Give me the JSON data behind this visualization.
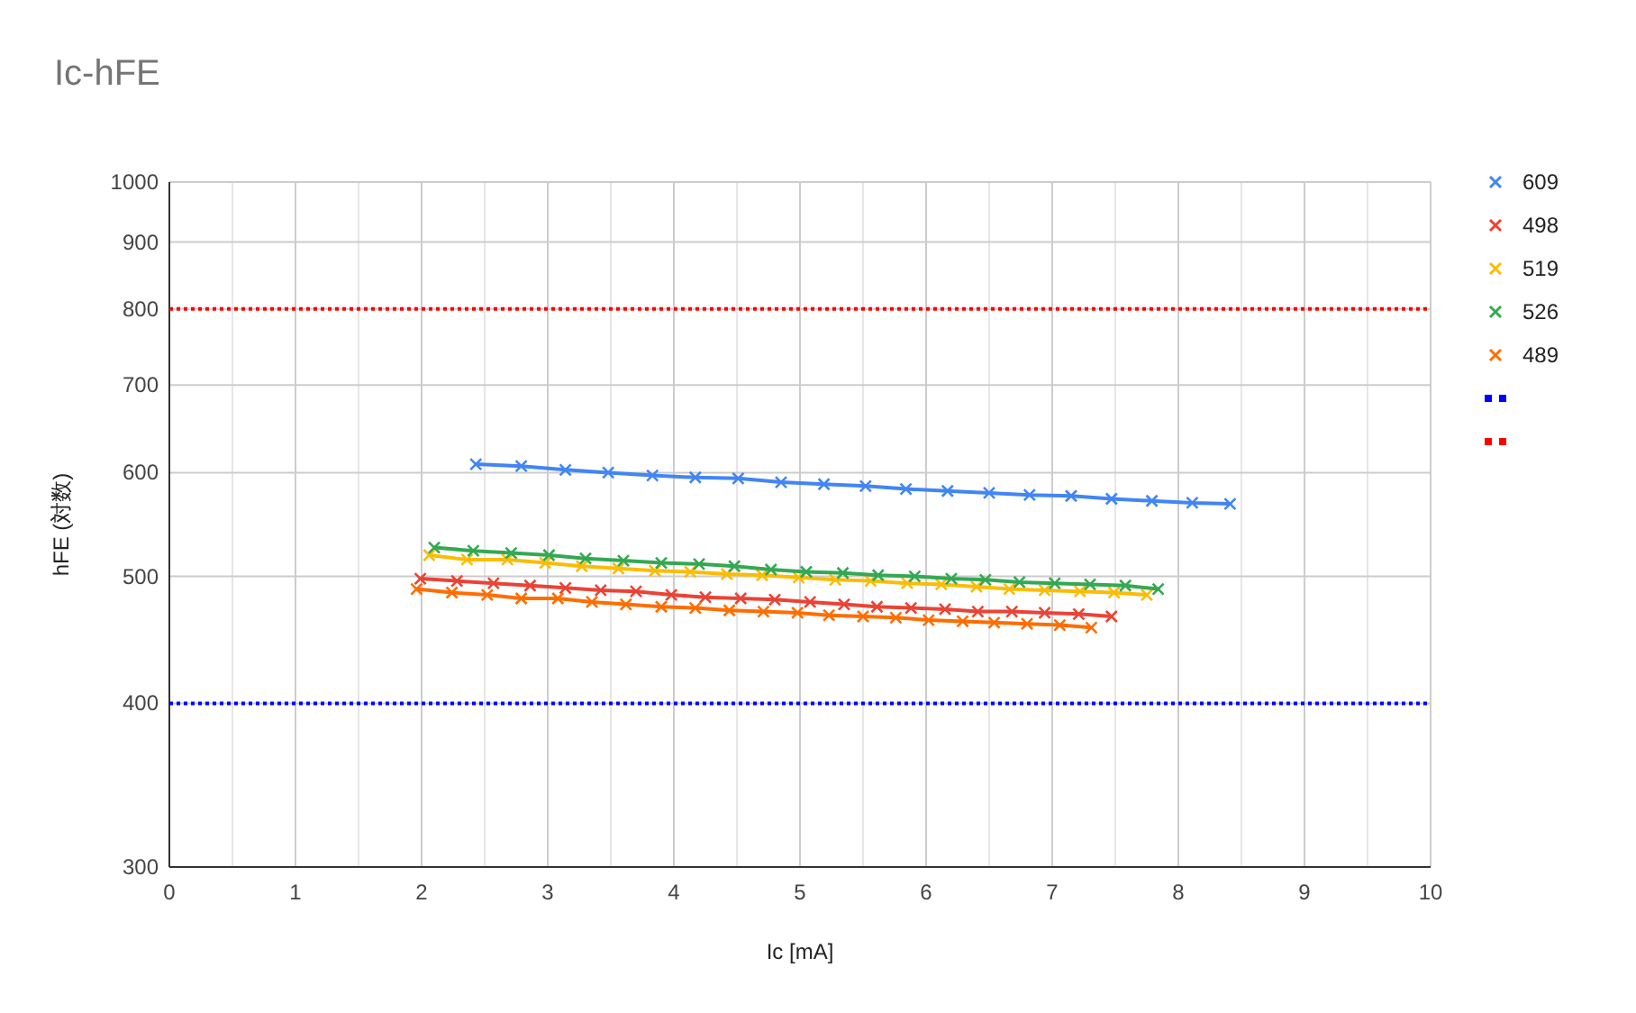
{
  "chart_data": {
    "type": "line",
    "title": "Ic-hFE",
    "xlabel": "Ic [mA]",
    "ylabel": "hFE (対数)",
    "log": "y",
    "grid": true,
    "legend": "right",
    "marker": "cross",
    "line_style": "solid",
    "xlim": [
      0,
      10
    ],
    "xticks": [
      0,
      {
        "value": 0.5,
        "label": null
      },
      1,
      {
        "value": 1.5,
        "label": null
      },
      2,
      {
        "value": 2.5,
        "label": null
      },
      3,
      {
        "value": 3.5,
        "label": null
      },
      4,
      {
        "value": 4.5,
        "label": null
      },
      5,
      {
        "value": 5.5,
        "label": null
      },
      6,
      {
        "value": 6.5,
        "label": null
      },
      7,
      {
        "value": 7.5,
        "label": null
      },
      8,
      {
        "value": 8.5,
        "label": null
      },
      9,
      {
        "value": 9.5,
        "label": null
      },
      10
    ],
    "ylim": [
      300,
      1000
    ],
    "yticks": [
      300,
      400,
      500,
      600,
      700,
      800,
      900,
      1000
    ],
    "series": [
      {
        "name": "609",
        "color": "#4285f4",
        "x": [
          2.43,
          2.79,
          3.14,
          3.48,
          3.83,
          4.17,
          4.51,
          4.85,
          5.19,
          5.52,
          5.84,
          6.17,
          6.5,
          6.82,
          7.15,
          7.47,
          7.79,
          8.11,
          8.41
        ],
        "values": [
          609,
          607,
          603,
          600,
          597,
          595,
          594,
          590,
          588,
          586,
          583,
          581,
          579,
          577,
          576,
          573,
          571,
          569,
          568
        ]
      },
      {
        "name": "498",
        "color": "#ea4335",
        "x": [
          1.99,
          2.28,
          2.57,
          2.86,
          3.14,
          3.42,
          3.7,
          3.98,
          4.25,
          4.53,
          4.8,
          5.08,
          5.35,
          5.61,
          5.88,
          6.15,
          6.41,
          6.68,
          6.94,
          7.21,
          7.47
        ],
        "values": [
          498,
          496,
          494,
          492,
          490,
          488,
          487,
          484,
          482,
          481,
          480,
          478,
          476,
          474,
          473,
          472,
          470,
          470,
          469,
          468,
          466
        ]
      },
      {
        "name": "519",
        "color": "#fbbc04",
        "x": [
          2.06,
          2.36,
          2.68,
          2.98,
          3.27,
          3.56,
          3.85,
          4.13,
          4.42,
          4.7,
          4.99,
          5.28,
          5.56,
          5.85,
          6.12,
          6.4,
          6.66,
          6.94,
          7.22,
          7.49,
          7.75
        ],
        "values": [
          519,
          515,
          515,
          512,
          509,
          507,
          505,
          504,
          502,
          501,
          499,
          497,
          496,
          494,
          493,
          491,
          489,
          488,
          487,
          486,
          484
        ]
      },
      {
        "name": "526",
        "color": "#34a853",
        "x": [
          2.1,
          2.41,
          2.71,
          3.01,
          3.3,
          3.6,
          3.9,
          4.2,
          4.48,
          4.77,
          5.05,
          5.34,
          5.62,
          5.91,
          6.2,
          6.47,
          6.74,
          7.02,
          7.3,
          7.58,
          7.84
        ],
        "values": [
          526,
          523,
          521,
          519,
          516,
          514,
          512,
          511,
          509,
          506,
          504,
          503,
          501,
          500,
          498,
          497,
          495,
          494,
          493,
          492,
          489
        ]
      },
      {
        "name": "489",
        "color": "#ff6d01",
        "x": [
          1.96,
          2.24,
          2.52,
          2.79,
          3.08,
          3.35,
          3.62,
          3.9,
          4.17,
          4.44,
          4.71,
          4.98,
          5.23,
          5.5,
          5.76,
          6.02,
          6.29,
          6.54,
          6.8,
          7.06,
          7.31
        ],
        "values": [
          489,
          486,
          484,
          481,
          481,
          478,
          476,
          474,
          473,
          471,
          470,
          469,
          467,
          466,
          465,
          463,
          462,
          461,
          460,
          459,
          457
        ]
      }
    ],
    "ref_lines": [
      {
        "axis": "y",
        "value": 400,
        "label": null,
        "color": "#0000ff",
        "line_style": "dotted"
      },
      {
        "axis": "y",
        "value": 800,
        "label": null,
        "color": "#ff0000",
        "line_style": "dotted"
      }
    ]
  }
}
